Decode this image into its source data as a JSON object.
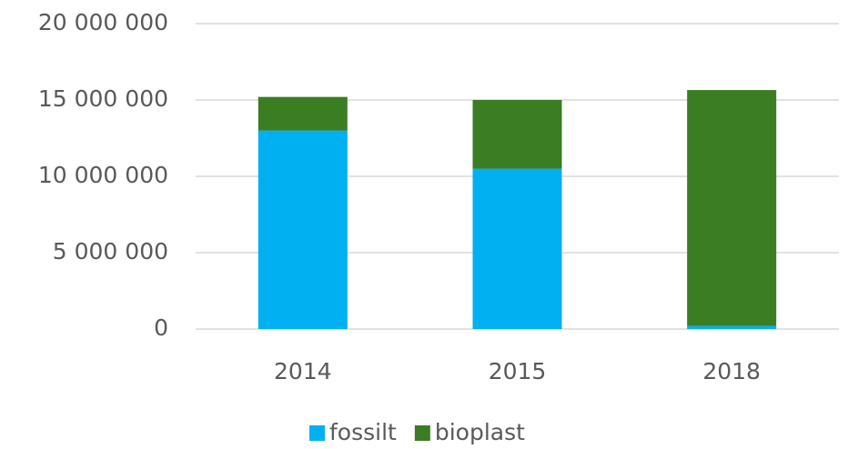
{
  "chart_data": {
    "type": "stacked_bar",
    "categories": [
      "2014",
      "2015",
      "2018"
    ],
    "series": [
      {
        "name": "fossilt",
        "color": "#00b0f0",
        "values": [
          13000000,
          10500000,
          200000
        ]
      },
      {
        "name": "bioplast",
        "color": "#3a7d22",
        "values": [
          2200000,
          4500000,
          15450000
        ]
      }
    ],
    "ylim": [
      0,
      20000000
    ],
    "yticks": [
      {
        "value": 0,
        "label": "0"
      },
      {
        "value": 5000000,
        "label": "5 000 000"
      },
      {
        "value": 10000000,
        "label": "10 000 000"
      },
      {
        "value": 15000000,
        "label": "15 000 000"
      },
      {
        "value": 20000000,
        "label": "20 000 000"
      }
    ],
    "grid": true,
    "legend": "bottom"
  }
}
